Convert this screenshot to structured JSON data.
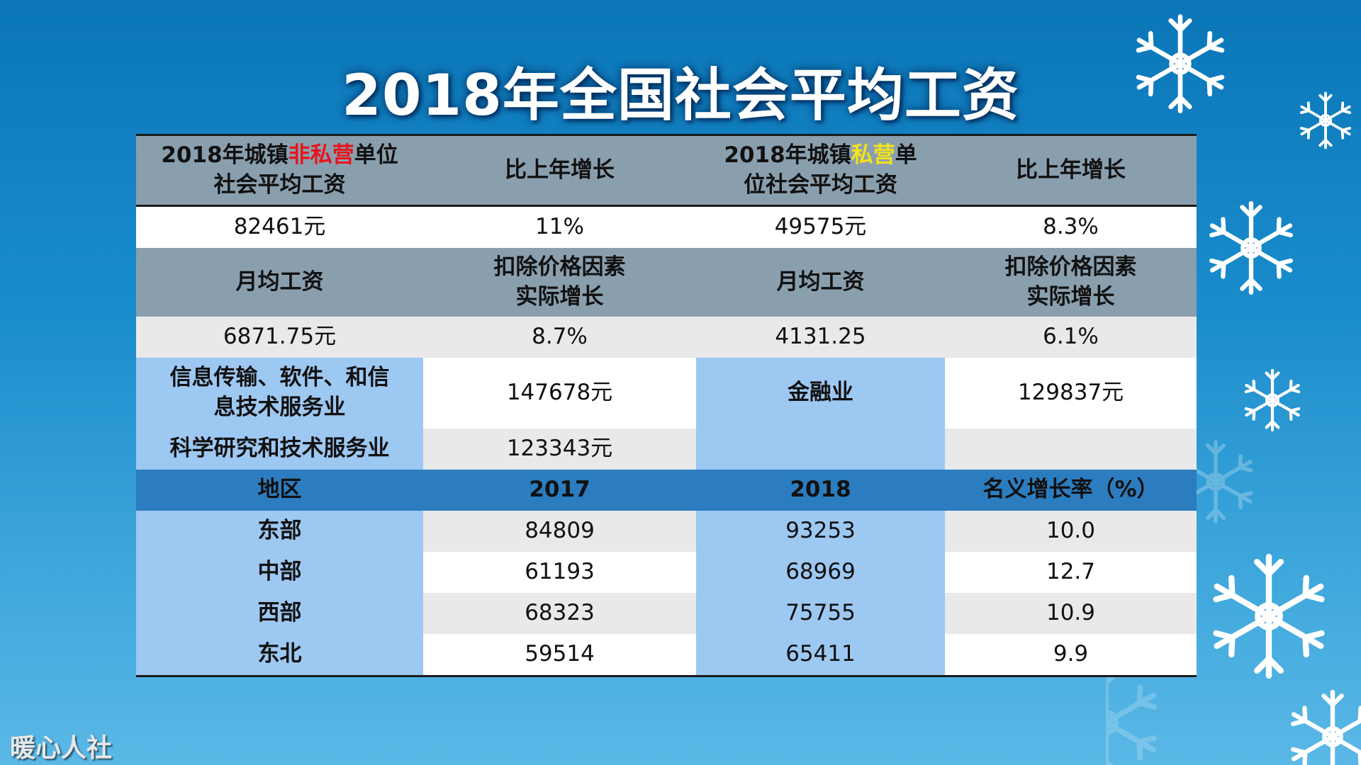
{
  "title": "2018年全国社会平均工资",
  "header1": {
    "col1_pre": "2018年城镇",
    "col1_hl": "非私营",
    "col1_post": "单位",
    "col1_line2": "社会平均工资",
    "col2": "比上年增长",
    "col3_pre": "2018年城镇",
    "col3_hl": "私营",
    "col3_post": "单",
    "col3_line2": "位社会平均工资",
    "col4": "比上年增长"
  },
  "row1": [
    "82461元",
    "11%",
    "49575元",
    "8.3%"
  ],
  "header2": {
    "col1": "月均工资",
    "col2_line1": "扣除价格因素",
    "col2_line2": "实际增长",
    "col3": "月均工资",
    "col4_line1": "扣除价格因素",
    "col4_line2": "实际增长"
  },
  "row2": [
    "6871.75元",
    "8.7%",
    "4131.25",
    "6.1%"
  ],
  "industry": {
    "it_line1": "信息传输、软件、和信",
    "it_line2": "息技术服务业",
    "it_value": "147678元",
    "finance": "金融业",
    "finance_value": "129837元",
    "science": "科学研究和技术服务业",
    "science_value": "123343元"
  },
  "region_header": [
    "地区",
    "2017",
    "2018",
    "名义增长率（%）"
  ],
  "regions": [
    [
      "东部",
      "84809",
      "93253",
      "10.0"
    ],
    [
      "中部",
      "61193",
      "68969",
      "12.7"
    ],
    [
      "西部",
      "68323",
      "75755",
      "10.9"
    ],
    [
      "东北",
      "59514",
      "65411",
      "9.9"
    ]
  ],
  "watermark": "暖心人社"
}
